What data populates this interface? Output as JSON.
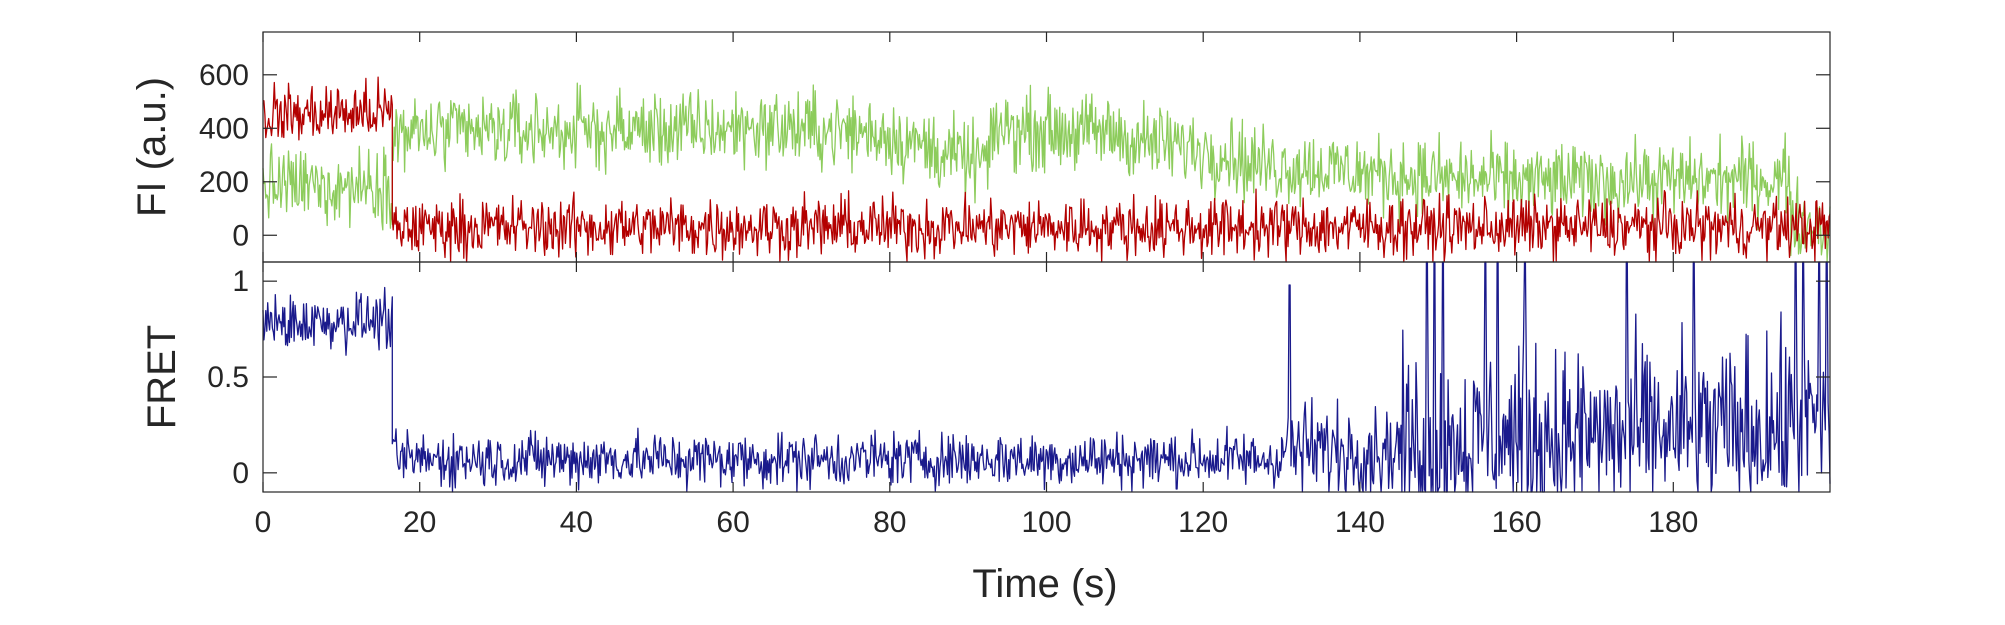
{
  "chart_data": [
    {
      "type": "line",
      "panel": "top",
      "ylabel": "FI (a.u.)",
      "xlim": [
        0,
        200
      ],
      "ylim": [
        -100,
        760
      ],
      "yticks": [
        0,
        200,
        400,
        600
      ],
      "ytick_labels": [
        "0",
        "200",
        "400",
        "600"
      ],
      "grid": false,
      "series": [
        {
          "color": "#8dcc5c",
          "noise": 70,
          "segments": [
            {
              "x": [
                0,
                16.5
              ],
              "y": [
                180,
                190
              ]
            },
            {
              "x": [
                16.5,
                30
              ],
              "y": [
                380,
                385
              ]
            },
            {
              "x": [
                30,
                60
              ],
              "y": [
                390,
                395
              ]
            },
            {
              "x": [
                60,
                80
              ],
              "y": [
                410,
                380
              ]
            },
            {
              "x": [
                80,
                90
              ],
              "y": [
                370,
                280
              ]
            },
            {
              "x": [
                90,
                93
              ],
              "y": [
                280,
                280
              ]
            },
            {
              "x": [
                93,
                110
              ],
              "y": [
                400,
                380
              ]
            },
            {
              "x": [
                110,
                125
              ],
              "y": [
                360,
                300
              ]
            },
            {
              "x": [
                125,
                140
              ],
              "y": [
                270,
                240
              ]
            },
            {
              "x": [
                140,
                160
              ],
              "y": [
                230,
                200
              ]
            },
            {
              "x": [
                160,
                195
              ],
              "y": [
                200,
                210
              ]
            },
            {
              "x": [
                195,
                200
              ],
              "y": [
                60,
                20
              ]
            }
          ]
        },
        {
          "color": "#b30000",
          "noise": 55,
          "segments": [
            {
              "x": [
                0,
                16.5
              ],
              "y": [
                450,
                460
              ]
            },
            {
              "x": [
                16.5,
                200
              ],
              "y": [
                30,
                30
              ]
            }
          ]
        }
      ]
    },
    {
      "type": "line",
      "panel": "bottom",
      "xlabel": "Time (s)",
      "ylabel": "FRET",
      "xlim": [
        0,
        200
      ],
      "ylim": [
        -0.1,
        1.1
      ],
      "xticks": [
        0,
        20,
        40,
        60,
        80,
        100,
        120,
        140,
        160,
        180
      ],
      "xtick_labels": [
        "0",
        "20",
        "40",
        "60",
        "80",
        "100",
        "120",
        "140",
        "160",
        "180"
      ],
      "yticks": [
        0,
        0.5,
        1
      ],
      "ytick_labels": [
        "0",
        "0.5",
        "1"
      ],
      "grid": false,
      "series": [
        {
          "color": "#1a1a8c",
          "segments": [
            {
              "x": [
                0,
                16.5
              ],
              "y": [
                0.78,
                0.8
              ],
              "noise": 0.07
            },
            {
              "x": [
                16.5,
                130
              ],
              "y": [
                0.07,
                0.07
              ],
              "noise": 0.07
            },
            {
              "x": [
                130,
                145
              ],
              "y": [
                0.12,
                0.12
              ],
              "noise": 0.12
            },
            {
              "x": [
                145,
                200
              ],
              "y": [
                0.15,
                0.25
              ],
              "noise": 0.22
            }
          ],
          "spikes": [
            {
              "x": 131,
              "y": 0.98
            },
            {
              "x": 148.5,
              "y": 1.1
            },
            {
              "x": 149.5,
              "y": 1.1
            },
            {
              "x": 150.5,
              "y": 1.1
            },
            {
              "x": 156,
              "y": 1.1
            },
            {
              "x": 157.5,
              "y": 1.1
            },
            {
              "x": 161,
              "y": 1.1
            },
            {
              "x": 174,
              "y": 1.1
            },
            {
              "x": 182.5,
              "y": 1.1
            },
            {
              "x": 195.5,
              "y": 1.1
            },
            {
              "x": 196.5,
              "y": 1.1
            },
            {
              "x": 198.5,
              "y": 1.1
            },
            {
              "x": 199.5,
              "y": 1.1
            }
          ]
        }
      ]
    }
  ]
}
